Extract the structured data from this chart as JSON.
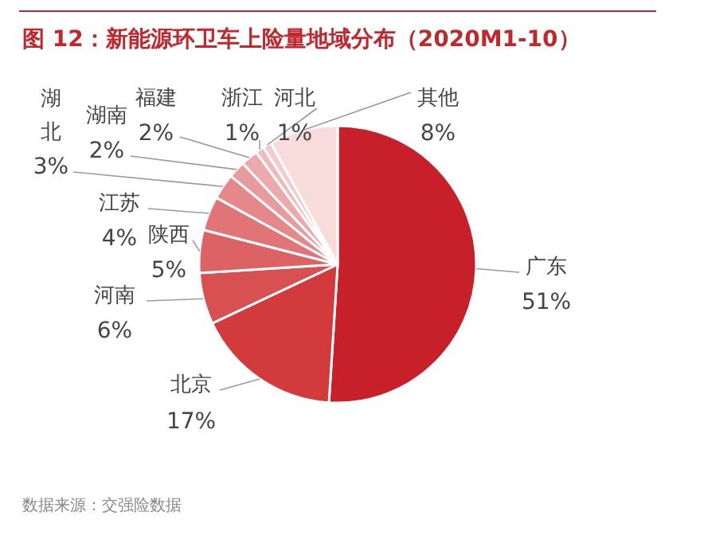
{
  "chart_data": {
    "type": "pie",
    "title": "图 12：新能源环卫车上险量地域分布（2020M1-10）",
    "categories": [
      "广东",
      "北京",
      "河南",
      "陕西",
      "江苏",
      "湖北",
      "湖南",
      "福建",
      "浙江",
      "河北",
      "其他"
    ],
    "values": [
      51,
      17,
      6,
      5,
      4,
      3,
      2,
      2,
      1,
      1,
      8
    ],
    "value_labels": [
      "51%",
      "17%",
      "6%",
      "5%",
      "4%",
      "3%",
      "2%",
      "2%",
      "1%",
      "1%",
      "8%"
    ],
    "colors": [
      "#c8202a",
      "#d23a3c",
      "#d85052",
      "#dc6264",
      "#e07476",
      "#e4888a",
      "#e89a9c",
      "#ecaaac",
      "#f0babc",
      "#f4cacc",
      "#f8dcdc"
    ],
    "annotations": [
      "数据来源：交强险数据"
    ]
  }
}
